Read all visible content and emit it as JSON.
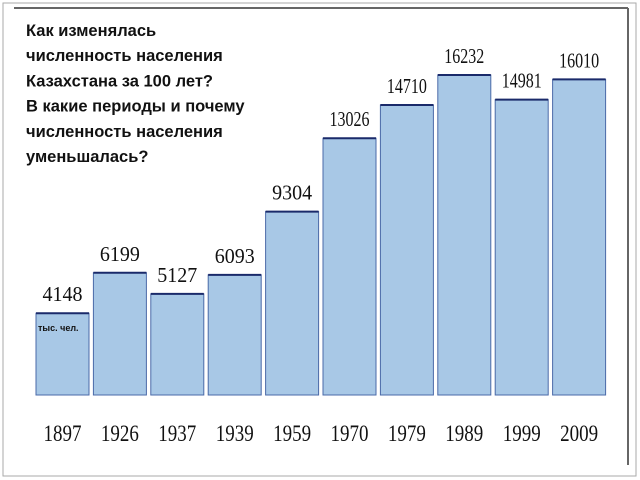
{
  "chart_data": {
    "type": "bar",
    "title": [
      "Как изменялась",
      "численность населения",
      "Казахстана за 100 лет?",
      "В какие периоды и почему",
      "численность населения",
      "уменьшалась?"
    ],
    "unit_label": "тыс. чел.",
    "categories": [
      "1897",
      "1926",
      "1937",
      "1939",
      "1959",
      "1970",
      "1979",
      "1989",
      "1999",
      "2009"
    ],
    "values": [
      4148,
      6199,
      5127,
      6093,
      9304,
      13026,
      14710,
      16232,
      14981,
      16010
    ],
    "color": "#a8c8e6"
  }
}
